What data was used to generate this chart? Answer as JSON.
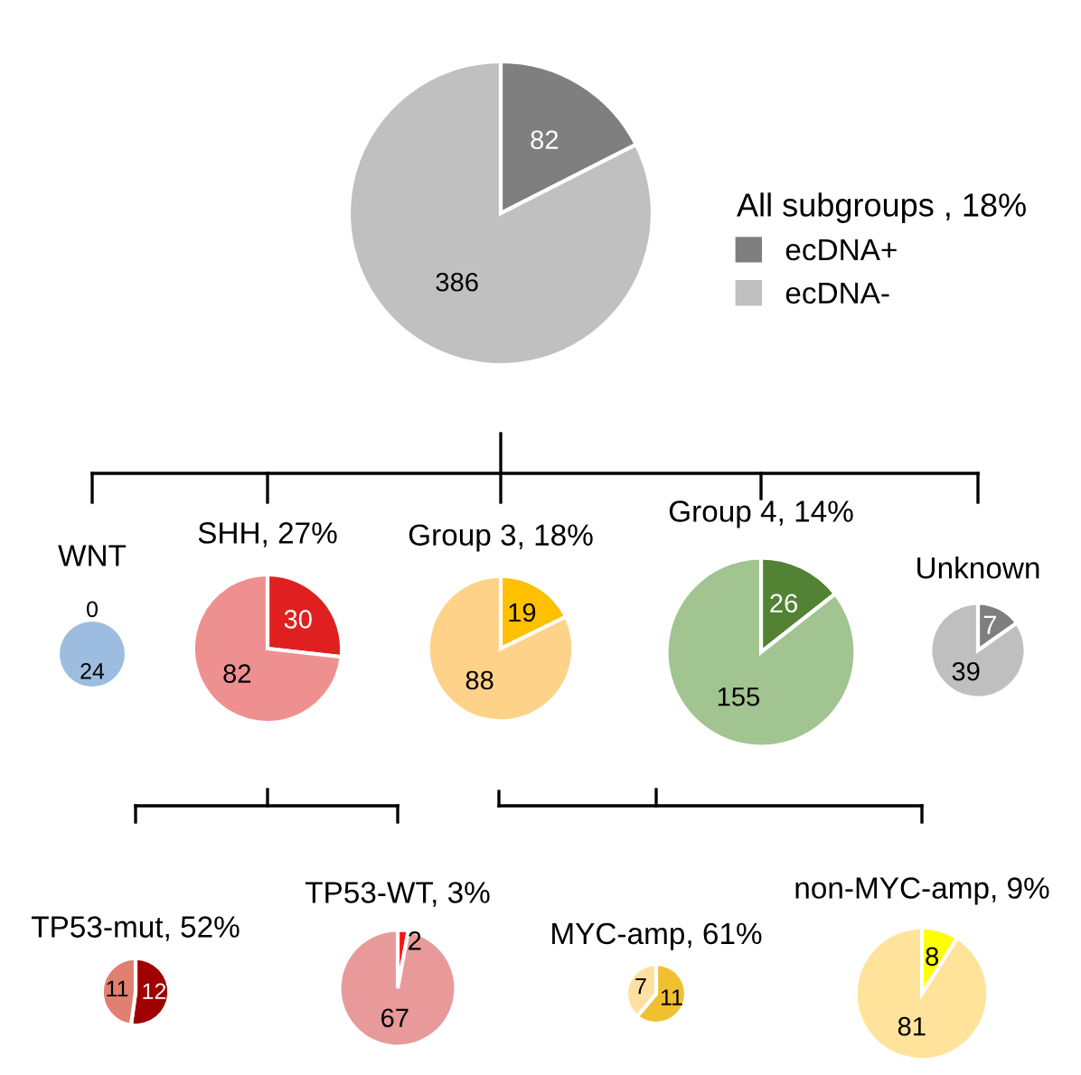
{
  "chart_data": [
    {
      "type": "pie",
      "legend_title": "All subgroups , 18%",
      "legend": "right",
      "categories": [
        "ecDNA+",
        "ecDNA-"
      ],
      "values": [
        82,
        386
      ],
      "colors": [
        "#7f7f7f",
        "#c0c0c0"
      ],
      "data_labels": true
    },
    {
      "type": "pie",
      "title": "WNT",
      "categories": [
        null,
        null
      ],
      "values": [
        0,
        24
      ],
      "colors": [
        "#9dbde0",
        "#9dbde0"
      ],
      "value_labels": [
        "0",
        "24"
      ]
    },
    {
      "type": "pie",
      "title": "SHH, 27%",
      "categories": [
        null,
        null
      ],
      "values": [
        30,
        82
      ],
      "colors": [
        "#e02020",
        "#ef9090"
      ],
      "data_labels": true
    },
    {
      "type": "pie",
      "title": "Group 3, 18%",
      "categories": [
        null,
        null
      ],
      "values": [
        19,
        88
      ],
      "colors": [
        "#ffc000",
        "#ffd28a"
      ],
      "data_labels": true
    },
    {
      "type": "pie",
      "title": "Group 4, 14%",
      "categories": [
        null,
        null
      ],
      "values": [
        26,
        155
      ],
      "colors": [
        "#548235",
        "#a2c490"
      ],
      "data_labels": true
    },
    {
      "type": "pie",
      "title": "Unknown",
      "categories": [
        null,
        null
      ],
      "values": [
        7,
        39
      ],
      "colors": [
        "#7f7f7f",
        "#bfbfbf"
      ],
      "data_labels": true
    },
    {
      "type": "pie",
      "title": "TP53-mut, 52%",
      "categories": [
        null,
        null
      ],
      "values": [
        12,
        11
      ],
      "colors": [
        "#a00000",
        "#e08070"
      ],
      "data_labels": true
    },
    {
      "type": "pie",
      "title": "TP53-WT, 3%",
      "categories": [
        null,
        null
      ],
      "values": [
        2,
        67
      ],
      "colors": [
        "#ff1010",
        "#e89a9a"
      ],
      "data_labels": true
    },
    {
      "type": "pie",
      "title": "MYC-amp, 61%",
      "categories": [
        null,
        null
      ],
      "values": [
        11,
        7
      ],
      "colors": [
        "#f0c030",
        "#ffe0a0"
      ],
      "data_labels": true
    },
    {
      "type": "pie",
      "title": "non-MYC-amp, 9%",
      "categories": [
        null,
        null
      ],
      "values": [
        8,
        81
      ],
      "colors": [
        "#ffff00",
        "#ffe39a"
      ],
      "data_labels": true
    }
  ]
}
